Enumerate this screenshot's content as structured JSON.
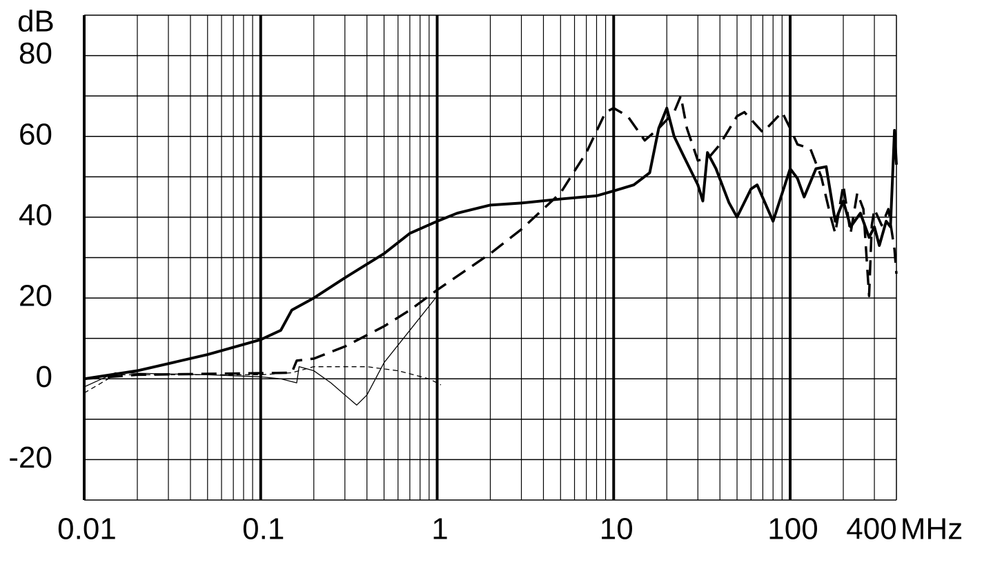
{
  "chart_data": {
    "type": "line",
    "xlabel": "MHz",
    "ylabel": "dB",
    "xscale": "log",
    "xlim": [
      0.01,
      400
    ],
    "ylim": [
      -30,
      90
    ],
    "xticks": [
      0.01,
      0.1,
      1,
      10,
      100,
      400
    ],
    "xminor": [
      0.02,
      0.03,
      0.04,
      0.05,
      0.06,
      0.07,
      0.08,
      0.09,
      0.2,
      0.3,
      0.4,
      0.5,
      0.6,
      0.7,
      0.8,
      0.9,
      2,
      3,
      4,
      5,
      6,
      7,
      8,
      9,
      20,
      30,
      40,
      50,
      60,
      70,
      80,
      90,
      200,
      300
    ],
    "yticks": [
      -20,
      0,
      20,
      40,
      60,
      80
    ],
    "yminor": [
      -30,
      -10,
      10,
      30,
      50,
      70,
      90
    ],
    "grid": true,
    "series": [
      {
        "color": "#000000",
        "width": 4,
        "dash": "none",
        "x": [
          0.01,
          0.02,
          0.05,
          0.1,
          0.13,
          0.15,
          0.2,
          0.3,
          0.5,
          0.7,
          1,
          1.3,
          2,
          3,
          5,
          8,
          10,
          13,
          16,
          18,
          20,
          22,
          25,
          30,
          32,
          34,
          38,
          45,
          50,
          60,
          65,
          80,
          100,
          110,
          120,
          140,
          160,
          180,
          200,
          220,
          250,
          280,
          300,
          320,
          350,
          370,
          380,
          390,
          400
        ],
        "values": [
          0,
          2,
          6,
          9.7,
          12,
          17,
          20,
          25,
          31,
          36,
          39,
          41,
          43,
          43.5,
          44.5,
          45.3,
          46.5,
          48,
          51,
          62,
          67,
          60,
          55,
          48,
          44,
          56,
          52,
          43.6,
          40,
          47,
          48,
          39,
          52,
          49.6,
          45,
          52,
          52.5,
          39,
          44,
          37.6,
          41,
          35,
          37.6,
          33,
          39,
          37.6,
          49.6,
          61.5,
          53
        ]
      },
      {
        "color": "#000000",
        "width": 3.5,
        "dash": "22 12",
        "x": [
          0.01,
          0.02,
          0.15,
          0.16,
          0.2,
          0.3,
          0.5,
          0.7,
          1,
          2,
          3,
          5,
          7,
          9,
          10,
          12,
          15,
          18,
          22,
          24,
          26,
          30,
          35,
          40,
          50,
          55,
          70,
          90,
          100,
          110,
          130,
          150,
          170,
          180,
          200,
          220,
          240,
          260,
          280,
          290,
          300,
          330,
          360,
          390,
          400
        ],
        "values": [
          0,
          1,
          1.5,
          4.5,
          5,
          8,
          13,
          17,
          22,
          31,
          37,
          46,
          56,
          66,
          67,
          65,
          59,
          62,
          66,
          70,
          62,
          54,
          55,
          58,
          65,
          66,
          61,
          66,
          62,
          58,
          57,
          50,
          40,
          36,
          48,
          36,
          46,
          42,
          20.5,
          38,
          42,
          38,
          42,
          32,
          26
        ]
      },
      {
        "color": "#000000",
        "width": 1.3,
        "dash": "none",
        "x": [
          0.01,
          0.015,
          0.05,
          0.1,
          0.13,
          0.16,
          0.165,
          0.2,
          0.25,
          0.3,
          0.35,
          0.4,
          0.5,
          0.7,
          1
        ],
        "values": [
          -2,
          1.5,
          1,
          0.5,
          0,
          -1,
          3,
          2,
          -1,
          -4,
          -6.5,
          -4,
          4,
          12,
          20.5
        ]
      },
      {
        "color": "#000000",
        "width": 1.3,
        "dash": "7 5",
        "x": [
          0.01,
          0.015,
          0.1,
          0.15,
          0.2,
          0.4,
          0.6,
          0.9,
          1.05
        ],
        "values": [
          -3.5,
          1,
          1,
          1.5,
          3,
          3,
          2,
          0,
          -1.5
        ]
      }
    ]
  }
}
